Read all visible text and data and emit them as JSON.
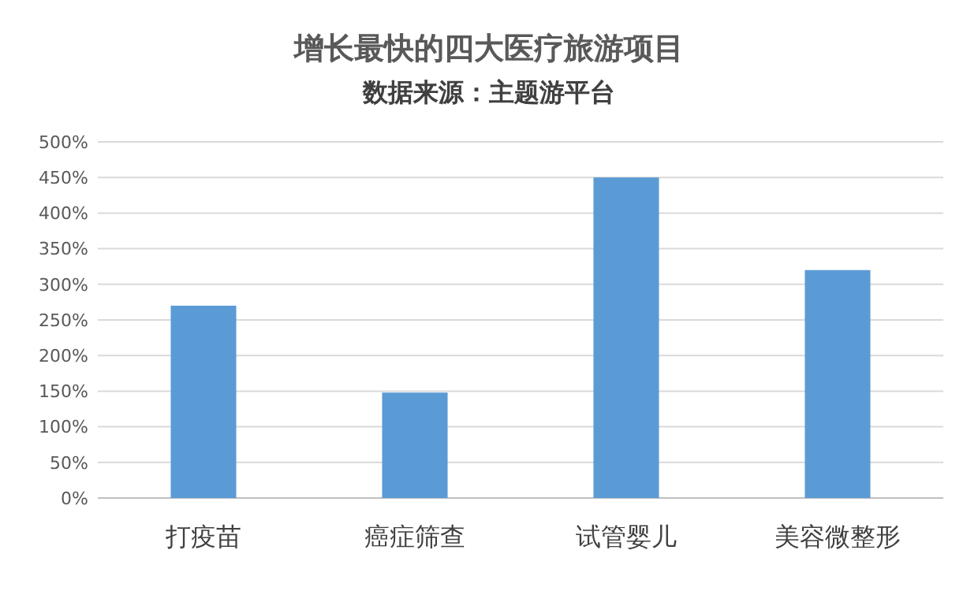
{
  "chart_data": {
    "type": "bar",
    "title": "增长最快的四大医疗旅游项目",
    "subtitle": "数据来源：主题游平台",
    "categories": [
      "打疫苗",
      "癌症筛查",
      "试管婴儿",
      "美容微整形"
    ],
    "values": [
      270,
      148,
      450,
      320
    ],
    "color": "#5b9bd5",
    "ylim": [
      0,
      500
    ],
    "yticks": [
      {
        "value": 0,
        "label": "0%"
      },
      {
        "value": 50,
        "label": "50%"
      },
      {
        "value": 100,
        "label": "100%"
      },
      {
        "value": 150,
        "label": "150%"
      },
      {
        "value": 200,
        "label": "200%"
      },
      {
        "value": 250,
        "label": "250%"
      },
      {
        "value": 300,
        "label": "300%"
      },
      {
        "value": 350,
        "label": "350%"
      },
      {
        "value": 400,
        "label": "400%"
      },
      {
        "value": 450,
        "label": "450%"
      },
      {
        "value": 500,
        "label": "500%"
      }
    ],
    "grid": "y"
  }
}
